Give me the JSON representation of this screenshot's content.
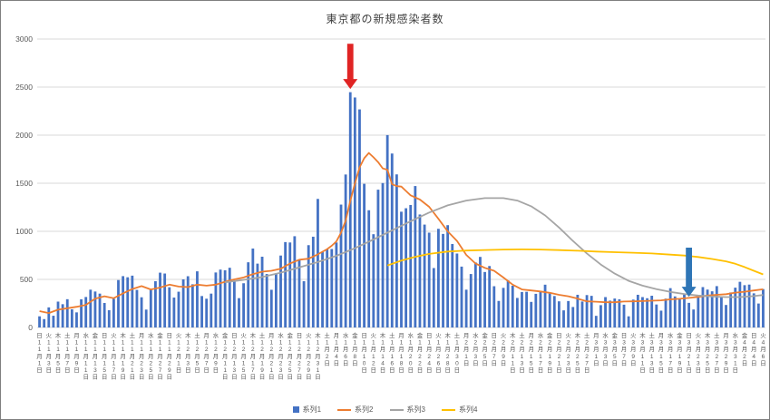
{
  "chart_data": {
    "type": "bar",
    "title": "東京都の新規感染者数",
    "xlabel": "",
    "ylabel": "",
    "ylim": [
      0,
      3000
    ],
    "y_ticks": [
      0,
      500,
      1000,
      1500,
      2000,
      2500,
      3000
    ],
    "grid": true,
    "legend_position": "bottom",
    "x_tick_labels": [
      "日|11|1",
      "火|11|3",
      "木|11|5",
      "土|11|7",
      "月|11|9",
      "水|11|11",
      "金|11|13",
      "日|11|15",
      "火|11|17",
      "木|11|19",
      "土|11|21",
      "月|11|23",
      "水|11|25",
      "金|11|27",
      "日|11|29",
      "火|12|1",
      "木|12|3",
      "土|12|5",
      "月|12|7",
      "水|12|9",
      "金|12|11",
      "日|12|13",
      "火|12|15",
      "木|12|17",
      "土|12|19",
      "月|12|21",
      "水|12|23",
      "金|12|25",
      "日|12|27",
      "火|12|29",
      "木|12|31",
      "土|1|2",
      "月|1|4",
      "水|1|6",
      "金|1|8",
      "日|1|10",
      "火|1|12",
      "木|1|14",
      "土|1|16",
      "月|1|18",
      "水|1|20",
      "金|1|22",
      "日|1|24",
      "火|1|26",
      "木|1|28",
      "土|1|30",
      "月|2|1",
      "水|2|3",
      "金|2|5",
      "日|2|7",
      "火|2|9",
      "木|2|11",
      "土|2|13",
      "月|2|15",
      "水|2|17",
      "金|2|19",
      "日|2|21",
      "火|2|23",
      "木|2|25",
      "土|2|27",
      "月|3|1",
      "水|3|3",
      "金|3|5",
      "日|3|7",
      "火|3|9",
      "木|3|11",
      "土|3|13",
      "月|3|15",
      "水|3|17",
      "金|3|19",
      "日|3|21",
      "火|3|23",
      "木|3|25",
      "土|3|27",
      "月|3|29",
      "水|3|31",
      "金|4|2",
      "日|4|4",
      "火|4|6"
    ],
    "series": [
      {
        "name": "系列1",
        "type": "bar",
        "color": "#4472C4",
        "values": [
          116,
          87,
          209,
          122,
          269,
          242,
          294,
          189,
          157,
          293,
          317,
          393,
          374,
          352,
          255,
          180,
          298,
          493,
          534,
          522,
          539,
          391,
          314,
          186,
          401,
          481,
          570,
          561,
          418,
          311,
          372,
          500,
          533,
          449,
          584,
          327,
          299,
          352,
          572,
          602,
          595,
          621,
          480,
          305,
          460,
          678,
          821,
          664,
          736,
          556,
          392,
          563,
          748,
          888,
          884,
          949,
          708,
          481,
          856,
          944,
          1337,
          783,
          814,
          816,
          884,
          1278,
          1591,
          2447,
          2392,
          2268,
          1494,
          1219,
          970,
          1433,
          1502,
          2001,
          1809,
          1592,
          1204,
          1240,
          1274,
          1471,
          1175,
          1070,
          986,
          618,
          1026,
          973,
          1064,
          868,
          769,
          633,
          393,
          556,
          676,
          734,
          577,
          639,
          429,
          276,
          412,
          491,
          434,
          307,
          369,
          371,
          266,
          350,
          378,
          445,
          353,
          327,
          272,
          178,
          275,
          213,
          340,
          270,
          337,
          329,
          121,
          232,
          316,
          279,
          301,
          293,
          237,
          116,
          290,
          340,
          316,
          304,
          330,
          239,
          175,
          300,
          409,
          323,
          303,
          342,
          256,
          187,
          337,
          420,
          394,
          376,
          430,
          313,
          234,
          364,
          414,
          475,
          440,
          446,
          355,
          249,
          399
        ]
      },
      {
        "name": "系列2",
        "type": "line",
        "color": "#ED7D31",
        "points": [
          [
            0,
            170
          ],
          [
            2,
            150
          ],
          [
            4,
            185
          ],
          [
            6,
            200
          ],
          [
            8,
            215
          ],
          [
            10,
            235
          ],
          [
            12,
            300
          ],
          [
            14,
            325
          ],
          [
            16,
            305
          ],
          [
            18,
            355
          ],
          [
            20,
            400
          ],
          [
            22,
            430
          ],
          [
            24,
            395
          ],
          [
            26,
            415
          ],
          [
            28,
            445
          ],
          [
            30,
            425
          ],
          [
            32,
            420
          ],
          [
            34,
            445
          ],
          [
            36,
            435
          ],
          [
            38,
            445
          ],
          [
            40,
            475
          ],
          [
            42,
            500
          ],
          [
            44,
            520
          ],
          [
            46,
            555
          ],
          [
            48,
            580
          ],
          [
            50,
            590
          ],
          [
            52,
            610
          ],
          [
            54,
            665
          ],
          [
            56,
            705
          ],
          [
            58,
            715
          ],
          [
            60,
            760
          ],
          [
            62,
            815
          ],
          [
            63,
            850
          ],
          [
            64,
            895
          ],
          [
            65,
            985
          ],
          [
            66,
            1110
          ],
          [
            67,
            1315
          ],
          [
            68,
            1500
          ],
          [
            69,
            1665
          ],
          [
            70,
            1760
          ],
          [
            71,
            1815
          ],
          [
            72,
            1770
          ],
          [
            73,
            1720
          ],
          [
            74,
            1655
          ],
          [
            75,
            1640
          ],
          [
            76,
            1490
          ],
          [
            77,
            1470
          ],
          [
            78,
            1465
          ],
          [
            79,
            1420
          ],
          [
            80,
            1375
          ],
          [
            82,
            1330
          ],
          [
            84,
            1255
          ],
          [
            86,
            1130
          ],
          [
            88,
            1000
          ],
          [
            90,
            900
          ],
          [
            92,
            755
          ],
          [
            94,
            665
          ],
          [
            96,
            620
          ],
          [
            98,
            590
          ],
          [
            100,
            520
          ],
          [
            102,
            445
          ],
          [
            104,
            395
          ],
          [
            106,
            385
          ],
          [
            108,
            375
          ],
          [
            110,
            360
          ],
          [
            112,
            340
          ],
          [
            114,
            325
          ],
          [
            116,
            300
          ],
          [
            118,
            272
          ],
          [
            120,
            268
          ],
          [
            122,
            262
          ],
          [
            124,
            262
          ],
          [
            126,
            270
          ],
          [
            128,
            272
          ],
          [
            130,
            275
          ],
          [
            132,
            278
          ],
          [
            134,
            282
          ],
          [
            136,
            292
          ],
          [
            138,
            298
          ],
          [
            140,
            308
          ],
          [
            142,
            318
          ],
          [
            144,
            332
          ],
          [
            146,
            340
          ],
          [
            148,
            346
          ],
          [
            150,
            362
          ],
          [
            152,
            372
          ],
          [
            154,
            385
          ],
          [
            156,
            397
          ]
        ]
      },
      {
        "name": "系列3",
        "type": "line",
        "color": "#A5A5A5",
        "points": [
          [
            40,
            470
          ],
          [
            44,
            495
          ],
          [
            48,
            525
          ],
          [
            52,
            570
          ],
          [
            56,
            625
          ],
          [
            60,
            680
          ],
          [
            64,
            745
          ],
          [
            68,
            825
          ],
          [
            72,
            915
          ],
          [
            76,
            1010
          ],
          [
            80,
            1105
          ],
          [
            84,
            1195
          ],
          [
            88,
            1270
          ],
          [
            92,
            1320
          ],
          [
            96,
            1345
          ],
          [
            100,
            1345
          ],
          [
            103,
            1320
          ],
          [
            106,
            1260
          ],
          [
            109,
            1165
          ],
          [
            112,
            1040
          ],
          [
            115,
            900
          ],
          [
            118,
            770
          ],
          [
            121,
            655
          ],
          [
            124,
            560
          ],
          [
            127,
            485
          ],
          [
            130,
            435
          ],
          [
            133,
            398
          ],
          [
            136,
            370
          ],
          [
            139,
            348
          ],
          [
            142,
            332
          ],
          [
            145,
            322
          ],
          [
            148,
            316
          ],
          [
            151,
            316
          ],
          [
            154,
            326
          ],
          [
            156,
            338
          ]
        ]
      },
      {
        "name": "系列4",
        "type": "line",
        "color": "#FFC000",
        "points": [
          [
            75,
            645
          ],
          [
            78,
            695
          ],
          [
            81,
            735
          ],
          [
            84,
            765
          ],
          [
            88,
            790
          ],
          [
            92,
            800
          ],
          [
            96,
            806
          ],
          [
            100,
            810
          ],
          [
            104,
            812
          ],
          [
            108,
            810
          ],
          [
            112,
            805
          ],
          [
            116,
            798
          ],
          [
            120,
            790
          ],
          [
            124,
            783
          ],
          [
            128,
            777
          ],
          [
            132,
            770
          ],
          [
            136,
            758
          ],
          [
            139,
            748
          ],
          [
            142,
            733
          ],
          [
            145,
            712
          ],
          [
            148,
            688
          ],
          [
            150,
            662
          ],
          [
            152,
            628
          ],
          [
            154,
            590
          ],
          [
            156,
            552
          ]
        ]
      }
    ],
    "annotations": [
      {
        "type": "down-arrow",
        "color": "#E02424",
        "index": 67,
        "tip_value": 2480,
        "tail_value": 2950
      },
      {
        "type": "down-arrow",
        "color": "#2E75B6",
        "index": 140,
        "tip_value": 320,
        "tail_value": 830
      }
    ]
  }
}
